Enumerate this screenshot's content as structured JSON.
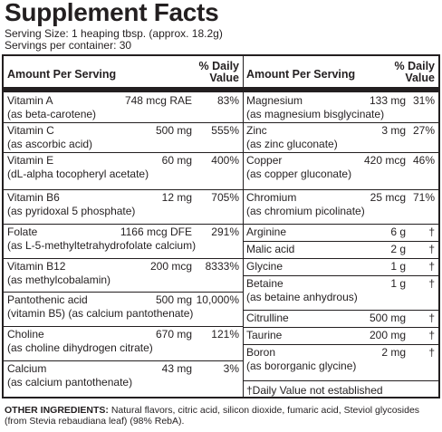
{
  "title": "Supplement Facts",
  "serving_size": "Serving Size: 1 heaping tbsp. (approx. 18.2g)",
  "servings_per_container": "Servings per container: 30",
  "header": {
    "amount_label": "Amount Per Serving",
    "dv_line1": "% Daily",
    "dv_line2": "Value"
  },
  "left_rows": [
    {
      "name": "Vitamin A",
      "amount": "748 mcg RAE",
      "dv": "83%",
      "sub": "(as beta-carotene)"
    },
    {
      "name": "Vitamin C",
      "amount": "500 mg",
      "dv": "555%",
      "sub": "(as ascorbic acid)"
    },
    {
      "name": "Vitamin E",
      "amount": "60 mg",
      "dv": "400%",
      "sub": "(dL-alpha tocopheryl acetate)"
    },
    {
      "name": "Vitamin B6",
      "amount": "12 mg",
      "dv": "705%",
      "sub": "(as pyridoxal 5 phosphate)"
    },
    {
      "name": "Folate",
      "amount": "1166 mcg DFE",
      "dv": "291%",
      "sub": "(as L-5-methyltetrahydrofolate calcium)"
    },
    {
      "name": "Vitamin B12",
      "amount": "200 mcg",
      "dv": "8333%",
      "sub": "(as methylcobalamin)"
    },
    {
      "name": "Pantothenic acid",
      "amount": "500 mg",
      "dv": "10,000%",
      "sub": "(vitamin B5) (as calcium pantothenate)"
    },
    {
      "name": "Choline",
      "amount": "670 mg",
      "dv": "121%",
      "sub": "(as choline dihydrogen citrate)"
    },
    {
      "name": "Calcium",
      "amount": "43 mg",
      "dv": "3%",
      "sub": "(as calcium pantothenate)"
    }
  ],
  "right_rows": [
    {
      "name": "Magnesium",
      "amount": "133 mg",
      "dv": "31%",
      "sub": "(as magnesium bisglycinate)"
    },
    {
      "name": "Zinc",
      "amount": "3 mg",
      "dv": "27%",
      "sub": "(as zinc gluconate)"
    },
    {
      "name": "Copper",
      "amount": "420 mcg",
      "dv": "46%",
      "sub": "(as copper gluconate)"
    },
    {
      "name": "Chromium",
      "amount": "25 mcg",
      "dv": "71%",
      "sub": "(as chromium picolinate)"
    },
    {
      "name": "Arginine",
      "amount": "6 g",
      "dv": "†",
      "sub": ""
    },
    {
      "name": "Malic acid",
      "amount": "2 g",
      "dv": "†",
      "sub": ""
    },
    {
      "name": "Glycine",
      "amount": "1 g",
      "dv": "†",
      "sub": ""
    },
    {
      "name": "Betaine",
      "amount": "1 g",
      "dv": "†",
      "sub": "(as betaine anhydrous)"
    },
    {
      "name": "Citrulline",
      "amount": "500 mg",
      "dv": "†",
      "sub": ""
    },
    {
      "name": "Taurine",
      "amount": "200 mg",
      "dv": "†",
      "sub": ""
    },
    {
      "name": "Boron",
      "amount": "2 mg",
      "dv": "†",
      "sub": "(as bororganic glycine)"
    }
  ],
  "footnote": "†Daily Value not established",
  "other_ingredients_label": "OTHER INGREDIENTS:",
  "other_ingredients_text": " Natural flavors, citric acid, silicon dioxide, fumaric acid, Steviol glycosides (from Stevia rebaudiana leaf) (98% RebA)."
}
